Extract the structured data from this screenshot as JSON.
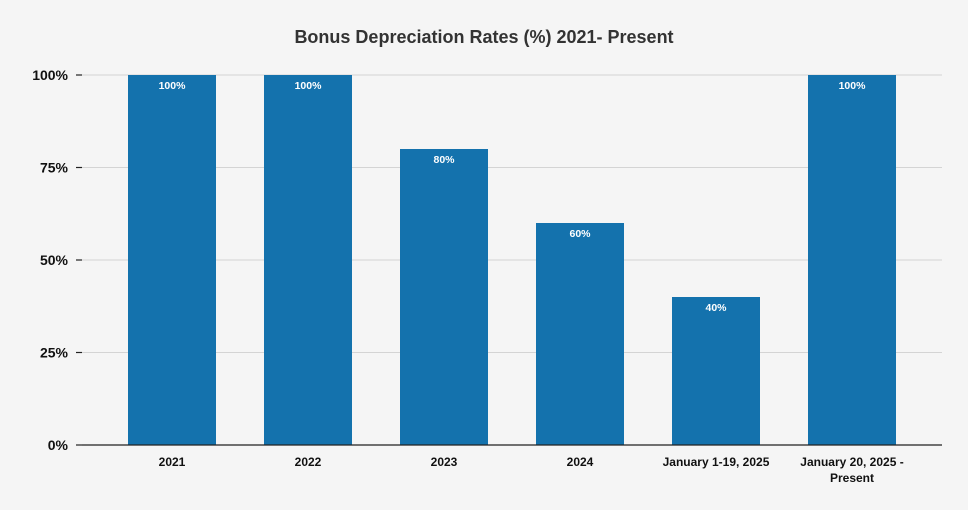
{
  "colors": {
    "background": "#f5f5f5",
    "bar": "#1472ad",
    "grid": "#d4d4d4",
    "axis": "#222222",
    "title": "#333333",
    "data_label": "#ffffff"
  },
  "chart_data": {
    "type": "bar",
    "title": "Bonus Depreciation Rates (%) 2021- Present",
    "xlabel": "",
    "ylabel": "",
    "categories": [
      "2021",
      "2022",
      "2023",
      "2024",
      "January 1-19, 2025",
      "January 20, 2025 - Present"
    ],
    "category_lines": [
      [
        "2021"
      ],
      [
        "2022"
      ],
      [
        "2023"
      ],
      [
        "2024"
      ],
      [
        "January 1-19, 2025"
      ],
      [
        "January 20, 2025 -",
        "Present"
      ]
    ],
    "values": [
      100,
      100,
      80,
      60,
      40,
      100
    ],
    "data_labels": [
      "100%",
      "100%",
      "80%",
      "60%",
      "40%",
      "100%"
    ],
    "ylim": [
      0,
      100
    ],
    "yticks": [
      0,
      25,
      50,
      75,
      100
    ],
    "ytick_labels": [
      "0%",
      "25%",
      "50%",
      "75%",
      "100%"
    ],
    "grid": true,
    "legend": "none"
  }
}
